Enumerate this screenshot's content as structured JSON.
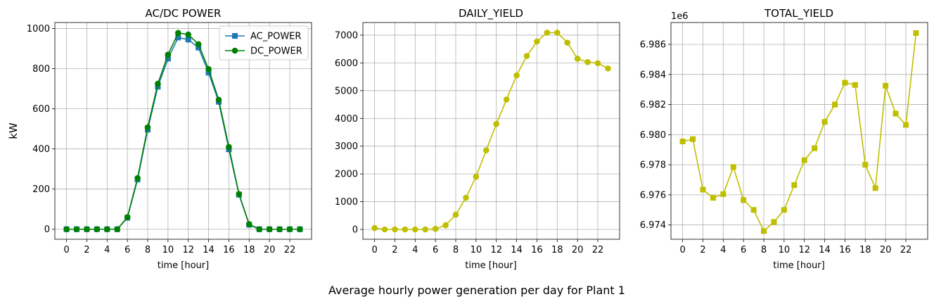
{
  "suptitle": "Average hourly power generation per day for Plant 1",
  "chart_data": [
    {
      "type": "line",
      "title": "AC/DC POWER",
      "xlabel": "time [hour]",
      "ylabel": "kW",
      "x": [
        0,
        1,
        2,
        3,
        4,
        5,
        6,
        7,
        8,
        9,
        10,
        11,
        12,
        13,
        14,
        15,
        16,
        17,
        18,
        19,
        20,
        21,
        22,
        23
      ],
      "xlim": [
        -1.15,
        24.15
      ],
      "ylim": [
        -50,
        1030
      ],
      "xticks": [
        0,
        2,
        4,
        6,
        8,
        10,
        12,
        14,
        16,
        18,
        20,
        22
      ],
      "yticks": [
        0,
        200,
        400,
        600,
        800,
        1000
      ],
      "grid": true,
      "legend": "top-right",
      "series": [
        {
          "name": "AC_POWER",
          "color": "#1f77b4",
          "marker": "square",
          "values": [
            0,
            0,
            0,
            0,
            0,
            0,
            57,
            248,
            496,
            710,
            850,
            955,
            945,
            905,
            780,
            635,
            398,
            172,
            22,
            0,
            0,
            0,
            0,
            0
          ]
        },
        {
          "name": "DC_POWER",
          "color": "#008000",
          "marker": "circle",
          "values": [
            0,
            0,
            0,
            0,
            0,
            0,
            60,
            255,
            508,
            725,
            870,
            978,
            970,
            922,
            798,
            645,
            410,
            175,
            25,
            0,
            0,
            0,
            0,
            0
          ]
        }
      ]
    },
    {
      "type": "line",
      "title": "DAILY_YIELD",
      "xlabel": "time [hour]",
      "x": [
        0,
        1,
        2,
        3,
        4,
        5,
        6,
        7,
        8,
        9,
        10,
        11,
        12,
        13,
        14,
        15,
        16,
        17,
        18,
        19,
        20,
        21,
        22,
        23
      ],
      "xlim": [
        -1.15,
        24.15
      ],
      "ylim": [
        -355,
        7455
      ],
      "xticks": [
        0,
        2,
        4,
        6,
        8,
        10,
        12,
        14,
        16,
        18,
        20,
        22
      ],
      "yticks": [
        0,
        1000,
        2000,
        3000,
        4000,
        5000,
        6000,
        7000
      ],
      "grid": true,
      "series": [
        {
          "color": "#bfbf00",
          "marker": "circle",
          "values": [
            50,
            0,
            0,
            0,
            0,
            0,
            20,
            150,
            530,
            1140,
            1900,
            2850,
            3800,
            4680,
            5550,
            6250,
            6770,
            7090,
            7090,
            6730,
            6150,
            6030,
            5990,
            5800
          ]
        }
      ]
    },
    {
      "type": "line",
      "title": "TOTAL_YIELD",
      "xlabel": "time [hour]",
      "axis_multiplier": "1e6",
      "x": [
        0,
        1,
        2,
        3,
        4,
        5,
        6,
        7,
        8,
        9,
        10,
        11,
        12,
        13,
        14,
        15,
        16,
        17,
        18,
        19,
        20,
        21,
        22,
        23
      ],
      "xlim": [
        -1.15,
        24.15
      ],
      "ylim": [
        6.97305,
        6.98745
      ],
      "xticks": [
        0,
        2,
        4,
        6,
        8,
        10,
        12,
        14,
        16,
        18,
        20,
        22
      ],
      "yticks": [
        6.974,
        6.976,
        6.978,
        6.98,
        6.982,
        6.984,
        6.986
      ],
      "ytick_labels": [
        "6.974",
        "6.976",
        "6.978",
        "6.980",
        "6.982",
        "6.984",
        "6.986"
      ],
      "grid": true,
      "series": [
        {
          "color": "#bfbf00",
          "marker": "square",
          "values": [
            6.97955,
            6.9797,
            6.97635,
            6.9758,
            6.97605,
            6.97785,
            6.97565,
            6.975,
            6.9736,
            6.9742,
            6.975,
            6.97665,
            6.9783,
            6.9791,
            6.98085,
            6.982,
            6.98345,
            6.9833,
            6.978,
            6.97645,
            6.98325,
            6.9814,
            6.98065,
            6.98675
          ]
        }
      ]
    }
  ]
}
